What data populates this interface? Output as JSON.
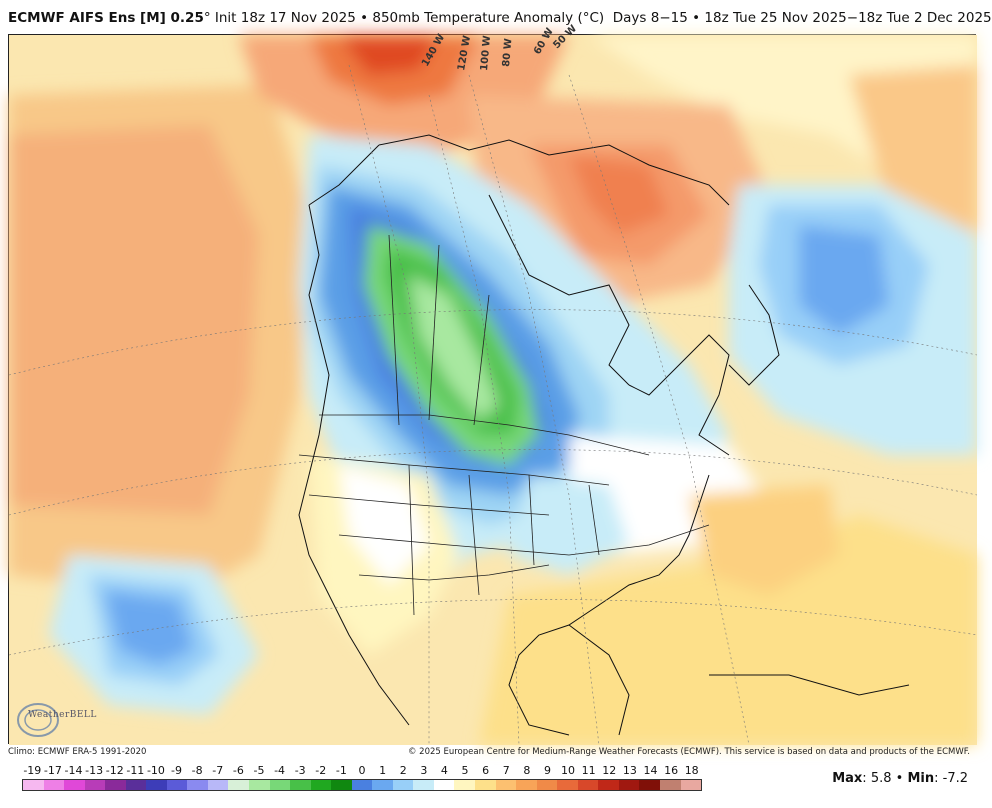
{
  "header": {
    "model": "ECMWF AIFS Ens [M] 0.25",
    "degree": "°",
    "init": "Init 18z 17 Nov 2025",
    "sep1": "•",
    "field": "850mb Temperature Anomaly (°C)",
    "days": "Days 8−15",
    "sep2": "•",
    "valid": "18z Tue 25 Nov 2025−18z Tue 2 Dec 2025"
  },
  "map": {
    "longitude_labels": [
      "140 W",
      "120 W",
      "100 W",
      "80 W",
      "60 W",
      "50 W"
    ]
  },
  "footer": {
    "climo": "Climo: ECMWF ERA-5 1991-2020",
    "copyright": "© 2025 European Centre for Medium-Range Weather Forecasts (ECMWF). This service is based on data and products of the ECMWF.",
    "logo_text": "WeatherBELL",
    "max_label": "Max",
    "max_value": "5.8",
    "sep": "•",
    "min_label": "Min",
    "min_value": "-7.2"
  },
  "legend": {
    "labels": [
      "-19",
      "-17",
      "-14",
      "-13",
      "-12",
      "-11",
      "-10",
      "-9",
      "-8",
      "-7",
      "-6",
      "-5",
      "-4",
      "-3",
      "-2",
      "-1",
      "0",
      "1",
      "2",
      "3",
      "4",
      "5",
      "6",
      "7",
      "8",
      "9",
      "10",
      "11",
      "12",
      "13",
      "14",
      "16",
      "18"
    ],
    "colors": [
      "#f6b8f0",
      "#ee7fe6",
      "#e048d8",
      "#b83cb8",
      "#8a2a9a",
      "#5a2f9a",
      "#3d3db8",
      "#5b5bd8",
      "#8a8af0",
      "#b8b8f8",
      "#d8f0d8",
      "#a8e8a0",
      "#78d878",
      "#48c048",
      "#20a820",
      "#108810",
      "#4a80e0",
      "#6aa8f0",
      "#98cff8",
      "#c8ecf8",
      "#ffffff",
      "#fff6c0",
      "#fde08a",
      "#fcc070",
      "#f8a458",
      "#f08a48",
      "#e86a3a",
      "#d8482a",
      "#c02818",
      "#a01810",
      "#801008",
      "#c08070",
      "#e8a8a0"
    ]
  }
}
